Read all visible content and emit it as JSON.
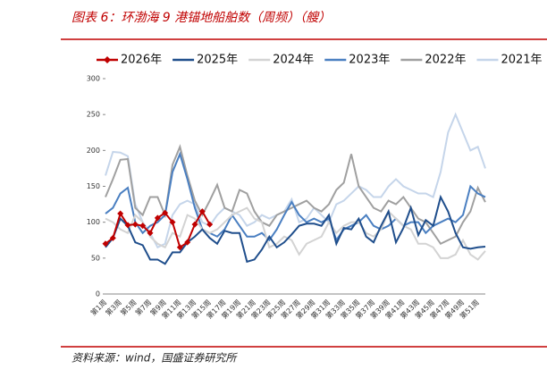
{
  "chart_data": {
    "type": "line",
    "title": "图表 6：环渤海 9 港锚地船舶数（周频）（艘）",
    "source": "资料来源：wind，国盛证券研究所",
    "categories": [
      "第1周",
      null,
      "第3周",
      null,
      "第5周",
      null,
      "第7周",
      null,
      "第9周",
      null,
      "第11周",
      null,
      "第13周",
      null,
      "第15周",
      null,
      "第17周",
      null,
      "第19周",
      null,
      "第21周",
      null,
      "第23周",
      null,
      "第25周",
      null,
      "第27周",
      null,
      "第29周",
      null,
      "第31周",
      null,
      "第33周",
      null,
      "第35周",
      null,
      "第37周",
      null,
      "第39周",
      null,
      "第41周",
      null,
      "第43周",
      null,
      "第45周",
      null,
      "第47周",
      null,
      "第49周",
      null,
      "第51周",
      null
    ],
    "ylim": [
      0,
      300
    ],
    "yticks": [
      0,
      50,
      100,
      150,
      200,
      250,
      300
    ],
    "series": [
      {
        "name": "2026年",
        "color": "#c00000",
        "marker": "diamond",
        "values": [
          70,
          78,
          112,
          96,
          97,
          95,
          85,
          106,
          113,
          100,
          65,
          72,
          97,
          115,
          97,
          null,
          null,
          null,
          null,
          null,
          null,
          null,
          null,
          null,
          null,
          null,
          null,
          null,
          null,
          null,
          null,
          null,
          null,
          null,
          null,
          null,
          null,
          null,
          null,
          null,
          null,
          null,
          null,
          null,
          null,
          null,
          null,
          null,
          null,
          null,
          null,
          null
        ]
      },
      {
        "name": "2025年",
        "color": "#1f4e8c",
        "values": [
          65,
          78,
          105,
          95,
          72,
          68,
          48,
          48,
          42,
          58,
          58,
          72,
          80,
          90,
          78,
          70,
          88,
          85,
          85,
          45,
          48,
          62,
          80,
          65,
          72,
          83,
          95,
          98,
          98,
          95,
          110,
          70,
          92,
          90,
          105,
          80,
          72,
          95,
          115,
          72,
          92,
          120,
          82,
          103,
          95,
          135,
          115,
          85,
          65,
          63,
          65,
          66
        ]
      },
      {
        "name": "2024年",
        "color": "#d3d3d3",
        "values": [
          105,
          100,
          90,
          85,
          110,
          100,
          80,
          70,
          65,
          85,
          80,
          110,
          105,
          90,
          85,
          90,
          100,
          110,
          115,
          120,
          105,
          100,
          65,
          70,
          80,
          75,
          55,
          70,
          75,
          80,
          100,
          85,
          95,
          100,
          100,
          85,
          80,
          90,
          115,
          105,
          95,
          90,
          70,
          70,
          65,
          50,
          50,
          55,
          75,
          55,
          48,
          60
        ]
      },
      {
        "name": "2023年",
        "color": "#4a7fc1",
        "values": [
          112,
          120,
          140,
          148,
          100,
          85,
          95,
          100,
          110,
          170,
          195,
          160,
          120,
          90,
          85,
          80,
          90,
          110,
          95,
          80,
          80,
          85,
          75,
          90,
          110,
          128,
          110,
          100,
          105,
          100,
          105,
          75,
          90,
          95,
          100,
          110,
          95,
          90,
          95,
          105,
          95,
          100,
          100,
          85,
          95,
          100,
          105,
          100,
          110,
          150,
          140,
          135
        ]
      },
      {
        "name": "2022年",
        "color": "#a0a0a0",
        "values": [
          135,
          160,
          187,
          188,
          120,
          110,
          135,
          135,
          110,
          180,
          205,
          165,
          130,
          110,
          130,
          152,
          120,
          115,
          145,
          140,
          115,
          100,
          95,
          110,
          115,
          120,
          125,
          130,
          120,
          115,
          125,
          145,
          155,
          195,
          150,
          135,
          120,
          115,
          130,
          125,
          135,
          120,
          105,
          100,
          85,
          70,
          75,
          80,
          100,
          115,
          148,
          128
        ]
      },
      {
        "name": "2021年",
        "color": "#c5d5ea",
        "values": [
          165,
          198,
          197,
          192,
          125,
          100,
          85,
          65,
          70,
          110,
          125,
          130,
          125,
          100,
          95,
          110,
          120,
          115,
          110,
          95,
          100,
          110,
          105,
          110,
          115,
          132,
          100,
          105,
          120,
          110,
          100,
          125,
          130,
          140,
          150,
          145,
          135,
          135,
          150,
          160,
          150,
          145,
          140,
          140,
          135,
          170,
          225,
          250,
          225,
          200,
          205,
          175
        ]
      }
    ]
  }
}
